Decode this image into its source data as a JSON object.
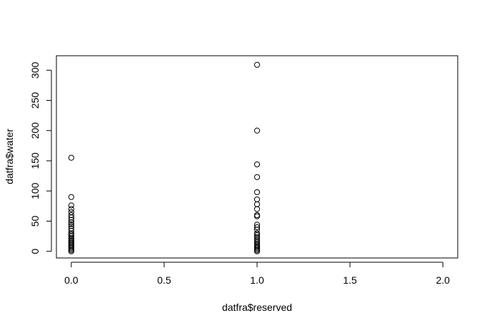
{
  "chart_data": {
    "type": "scatter",
    "title": "",
    "xlabel": "datfra$reserved",
    "ylabel": "datfra$water",
    "xlim": [
      -0.08,
      2.08
    ],
    "ylim": [
      -11,
      324
    ],
    "xticks": [
      0.0,
      0.5,
      1.0,
      1.5,
      2.0
    ],
    "xtick_labels": [
      "0.0",
      "0.5",
      "1.0",
      "1.5",
      "2.0"
    ],
    "yticks": [
      0,
      50,
      100,
      150,
      200,
      250,
      300
    ],
    "ytick_labels": [
      "0",
      "50",
      "100",
      "150",
      "200",
      "250",
      "300"
    ],
    "grid": false,
    "marker": "open-circle",
    "points": [
      {
        "x": 0,
        "y": 155
      },
      {
        "x": 0,
        "y": 90
      },
      {
        "x": 0,
        "y": 76
      },
      {
        "x": 0,
        "y": 70
      },
      {
        "x": 0,
        "y": 65
      },
      {
        "x": 0,
        "y": 60
      },
      {
        "x": 0,
        "y": 56
      },
      {
        "x": 0,
        "y": 52
      },
      {
        "x": 0,
        "y": 48
      },
      {
        "x": 0,
        "y": 45
      },
      {
        "x": 0,
        "y": 42
      },
      {
        "x": 0,
        "y": 38
      },
      {
        "x": 0,
        "y": 34
      },
      {
        "x": 0,
        "y": 30
      },
      {
        "x": 0,
        "y": 28
      },
      {
        "x": 0,
        "y": 25
      },
      {
        "x": 0,
        "y": 22
      },
      {
        "x": 0,
        "y": 20
      },
      {
        "x": 0,
        "y": 18
      },
      {
        "x": 0,
        "y": 16
      },
      {
        "x": 0,
        "y": 14
      },
      {
        "x": 0,
        "y": 12
      },
      {
        "x": 0,
        "y": 10
      },
      {
        "x": 0,
        "y": 8
      },
      {
        "x": 0,
        "y": 6
      },
      {
        "x": 0,
        "y": 4
      },
      {
        "x": 0,
        "y": 2
      },
      {
        "x": 0,
        "y": 0
      },
      {
        "x": 1,
        "y": 309
      },
      {
        "x": 1,
        "y": 200
      },
      {
        "x": 1,
        "y": 144
      },
      {
        "x": 1,
        "y": 123
      },
      {
        "x": 1,
        "y": 98
      },
      {
        "x": 1,
        "y": 86
      },
      {
        "x": 1,
        "y": 78
      },
      {
        "x": 1,
        "y": 70
      },
      {
        "x": 1,
        "y": 60
      },
      {
        "x": 1,
        "y": 58
      },
      {
        "x": 1,
        "y": 44
      },
      {
        "x": 1,
        "y": 40
      },
      {
        "x": 1,
        "y": 36
      },
      {
        "x": 1,
        "y": 30
      },
      {
        "x": 1,
        "y": 27
      },
      {
        "x": 1,
        "y": 24
      },
      {
        "x": 1,
        "y": 21
      },
      {
        "x": 1,
        "y": 18
      },
      {
        "x": 1,
        "y": 15
      },
      {
        "x": 1,
        "y": 12
      },
      {
        "x": 1,
        "y": 10
      },
      {
        "x": 1,
        "y": 8
      },
      {
        "x": 1,
        "y": 6
      },
      {
        "x": 1,
        "y": 4
      },
      {
        "x": 1,
        "y": 2
      },
      {
        "x": 1,
        "y": 0
      }
    ]
  }
}
